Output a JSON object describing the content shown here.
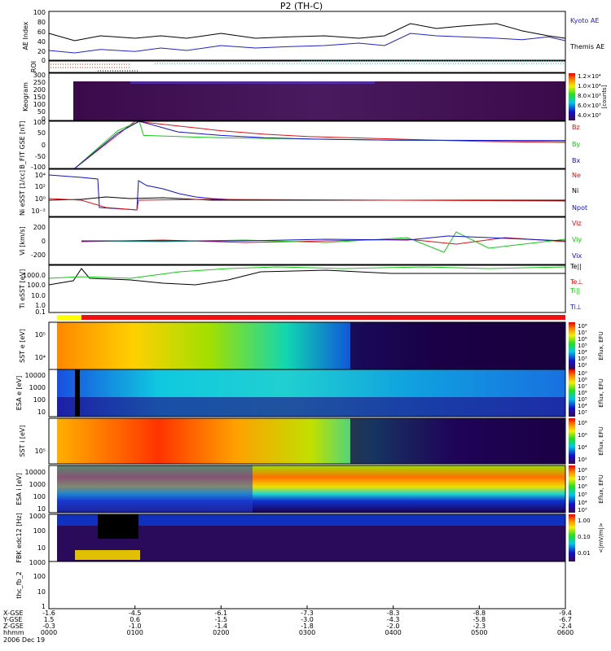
{
  "title": "P2 (TH-C)",
  "colors": {
    "kyoto": "#2222cc",
    "themis": "#000000",
    "red": "#dd1111",
    "green": "#11cc11",
    "blue": "#1111cc",
    "roi_red": "#cc3300",
    "roi_cyan": "#00bbbb",
    "orange": "#cc6600",
    "bar_red": "#ee1111",
    "bar_yellow": "#ffff00"
  },
  "ticks": {
    "x": [
      "0000",
      "0100",
      "0200",
      "0300",
      "0400",
      "0500",
      "0600"
    ],
    "x_hours": [
      0,
      1,
      2,
      3,
      4,
      5,
      6
    ]
  },
  "footer": {
    "row_labels": [
      "X-GSE",
      "Y-GSE",
      "Z-GSE",
      "hhmm",
      "2006 Dec 19"
    ],
    "columns": [
      [
        "-1.6",
        "1.5",
        "-0.3"
      ],
      [
        "-4.5",
        "0.6",
        "-1.0"
      ],
      [
        "-6.1",
        "-1.5",
        "-1.4"
      ],
      [
        "-7.3",
        "-3.0",
        "-1.8"
      ],
      [
        "-8.3",
        "-4.3",
        "-2.0"
      ],
      [
        "-8.8",
        "-5.8",
        "-2.3"
      ],
      [
        "-9.4",
        "-6.7",
        "-2.4"
      ]
    ]
  },
  "chart_data": {
    "type": "line",
    "xlabel": "hhmm",
    "xlim_hours": [
      0,
      6
    ],
    "panels": [
      {
        "id": "ae",
        "ylabel": "AE Index",
        "yticks": [
          "100",
          "80",
          "60",
          "40",
          "20",
          "0"
        ],
        "ylim": [
          0,
          100
        ],
        "series": [
          {
            "name": "Kyoto AE",
            "color_key": "kyoto",
            "x": [
              0,
              0.3,
              0.6,
              1.0,
              1.3,
              1.6,
              2.0,
              2.4,
              2.8,
              3.2,
              3.6,
              3.9,
              4.2,
              4.5,
              4.8,
              5.2,
              5.5,
              5.8,
              6.0
            ],
            "values": [
              20,
              15,
              22,
              18,
              25,
              20,
              30,
              25,
              28,
              30,
              35,
              30,
              55,
              50,
              48,
              45,
              42,
              48,
              40
            ]
          },
          {
            "name": "Themis AE",
            "color_key": "themis",
            "x": [
              0,
              0.3,
              0.6,
              1.0,
              1.3,
              1.6,
              2.0,
              2.4,
              2.8,
              3.2,
              3.6,
              3.9,
              4.2,
              4.5,
              4.8,
              5.2,
              5.5,
              5.8,
              6.0
            ],
            "values": [
              55,
              40,
              50,
              45,
              50,
              45,
              55,
              45,
              48,
              50,
              45,
              50,
              75,
              65,
              70,
              75,
              60,
              50,
              45
            ]
          }
        ]
      },
      {
        "id": "roi",
        "ylabel": "ROI"
      },
      {
        "id": "keogram",
        "ylabel": "Keogram",
        "type": "heatmap",
        "yticks": [
          "300",
          "250",
          "200",
          "150",
          "100",
          "50",
          "0"
        ],
        "colorbar_label": "[counts]",
        "colorbar_ticks": [
          "1.2×10⁴",
          "1.0×10⁴",
          "8.0×10³",
          "6.0×10³",
          "4.0×10³"
        ]
      },
      {
        "id": "bfield",
        "ylabel": "B_FIT GSE [nT]",
        "yticks": [
          "100",
          "50",
          "0",
          "-50",
          "-100"
        ],
        "ylim": [
          -100,
          100
        ],
        "series": [
          {
            "name": "Bz",
            "color_key": "red",
            "x": [
              0.3,
              1.0,
              1.5,
              2.0,
              2.5,
              3.0,
              4.0,
              5.0,
              6.0
            ],
            "values": [
              -100,
              100,
              80,
              60,
              45,
              35,
              25,
              15,
              10
            ]
          },
          {
            "name": "By",
            "color_key": "green",
            "x": [
              0.3,
              0.8,
              1.05,
              1.1,
              1.5,
              2.0,
              3.0,
              4.0,
              5.0,
              6.0
            ],
            "values": [
              -100,
              60,
              100,
              40,
              35,
              30,
              25,
              20,
              18,
              15
            ]
          },
          {
            "name": "Bx",
            "color_key": "blue",
            "x": [
              0.3,
              0.8,
              1.05,
              1.5,
              2.0,
              2.5,
              3.0,
              4.0,
              6.0
            ],
            "values": [
              -100,
              50,
              100,
              55,
              40,
              30,
              25,
              20,
              18
            ]
          }
        ]
      },
      {
        "id": "density",
        "ylabel": "Ni eSST [1/cc]",
        "yticks": [
          "10⁴",
          "10²",
          "10⁰",
          "10⁻²"
        ],
        "series": [
          {
            "name": "Ne",
            "color_key": "red"
          },
          {
            "name": "Ni",
            "color_key": "themis"
          },
          {
            "name": "Npot",
            "color_key": "blue"
          }
        ]
      },
      {
        "id": "velocity",
        "ylabel": "Vi [km/s]",
        "yticks": [
          "200",
          "0",
          "-200"
        ],
        "series": [
          {
            "name": "Viz",
            "color_key": "red"
          },
          {
            "name": "Viy",
            "color_key": "green"
          },
          {
            "name": "Vix",
            "color_key": "blue"
          }
        ]
      },
      {
        "id": "temperature",
        "ylabel": "Ti eSST [eV]",
        "yticks": [
          "1000.0",
          "100.0",
          "10.0",
          "1.0",
          "0.1"
        ],
        "series": [
          {
            "name": "Te||",
            "color_key": "themis"
          },
          {
            "name": "Te⊥",
            "color_key": "red"
          },
          {
            "name": "Ti||",
            "color_key": "green"
          },
          {
            "name": "Ti⊥",
            "color_key": "blue"
          }
        ]
      },
      {
        "id": "mode_bar"
      },
      {
        "id": "sst_e",
        "ylabel": "SST e [eV]",
        "type": "heatmap",
        "yticks": [
          "10⁵",
          "10⁴"
        ],
        "colorbar_label": "Eflux, EFU",
        "colorbar_ticks": [
          "10⁸",
          "10⁷",
          "10⁶",
          "10⁵",
          "10⁴",
          "10³",
          "10²"
        ]
      },
      {
        "id": "esa_e",
        "ylabel": "ESA e [eV]",
        "type": "heatmap",
        "yticks": [
          "10000",
          "1000",
          "100",
          "10"
        ],
        "colorbar_label": "Eflux, EFU",
        "colorbar_ticks": [
          "10⁹",
          "10⁸",
          "10⁷",
          "10⁶",
          "10⁵",
          "10⁴",
          "10³"
        ]
      },
      {
        "id": "sst_i",
        "ylabel": "SST i [eV]",
        "type": "heatmap",
        "yticks": [
          "10⁵"
        ],
        "colorbar_label": "Eflux, EFU",
        "colorbar_ticks": [
          "10⁸",
          "10⁶",
          "10⁴",
          "10²"
        ]
      },
      {
        "id": "esa_i",
        "ylabel": "ESA i [eV]",
        "type": "heatmap",
        "yticks": [
          "10000",
          "1000",
          "100",
          "10"
        ],
        "colorbar_label": "Eflux, EFU",
        "colorbar_ticks": [
          "10⁸",
          "10⁷",
          "10⁶",
          "10⁵",
          "10⁴",
          "10³"
        ]
      },
      {
        "id": "fbk",
        "ylabel": "FBK edc12 [Hz]",
        "type": "heatmap",
        "yticks": [
          "1000",
          "100",
          "10"
        ],
        "colorbar_label": "<|mV/m|>",
        "colorbar_ticks": [
          "1.00",
          "0.10",
          "0.01"
        ]
      },
      {
        "id": "fb",
        "ylabel": "thc_fb_2",
        "yticks": [
          "1000",
          "100",
          "10",
          "1"
        ]
      }
    ]
  }
}
